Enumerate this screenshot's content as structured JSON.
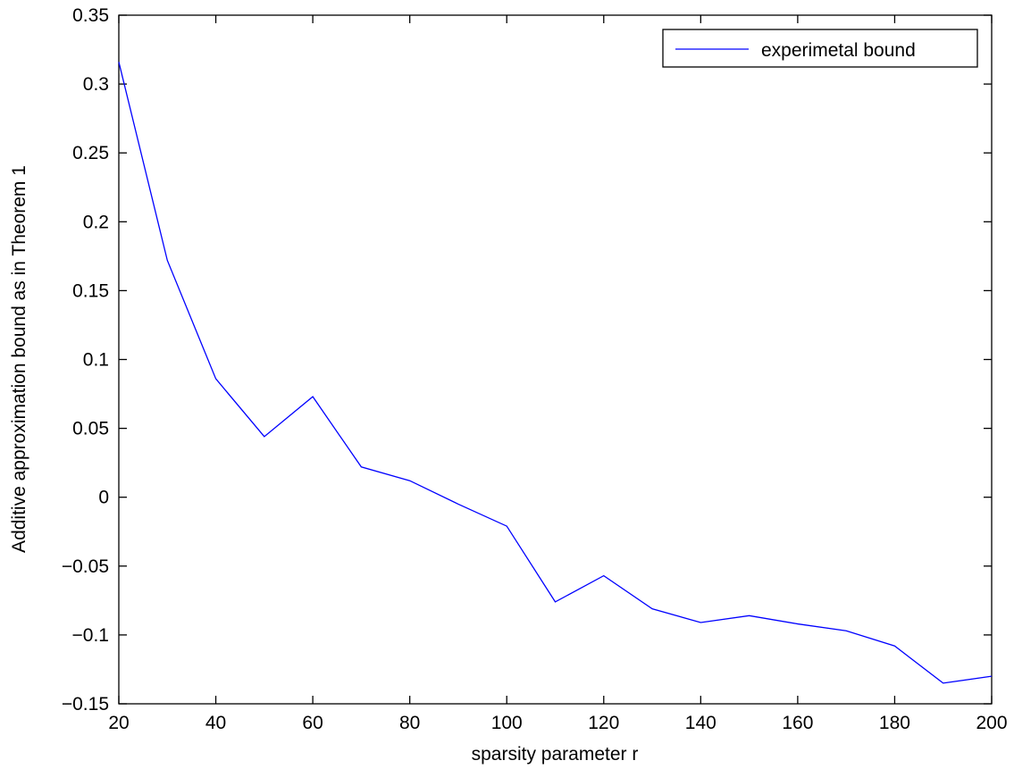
{
  "chart_data": {
    "type": "line",
    "title": "",
    "xlabel": "sparsity parameter r",
    "ylabel": "Additive approximation bound as in Theorem 1",
    "xlim": [
      20,
      200
    ],
    "ylim": [
      -0.15,
      0.35
    ],
    "xticks": [
      20,
      40,
      60,
      80,
      100,
      120,
      140,
      160,
      180,
      200
    ],
    "xtick_labels": [
      "20",
      "40",
      "60",
      "80",
      "100",
      "120",
      "140",
      "160",
      "180",
      "200"
    ],
    "yticks": [
      -0.15,
      -0.1,
      -0.05,
      0,
      0.05,
      0.1,
      0.15,
      0.2,
      0.25,
      0.3,
      0.35
    ],
    "ytick_labels": [
      "−0.15",
      "−0.1",
      "−0.05",
      "0",
      "0.05",
      "0.1",
      "0.15",
      "0.2",
      "0.25",
      "0.3",
      "0.35"
    ],
    "grid": false,
    "legend_position": "top-right",
    "series": [
      {
        "name": "experimetal bound",
        "color": "#0000ff",
        "x": [
          20,
          30,
          40,
          50,
          60,
          70,
          80,
          90,
          100,
          110,
          120,
          130,
          140,
          150,
          160,
          170,
          180,
          190,
          200
        ],
        "y": [
          0.316,
          0.172,
          0.086,
          0.044,
          0.073,
          0.022,
          0.012,
          -0.005,
          -0.021,
          -0.076,
          -0.057,
          -0.081,
          -0.091,
          -0.086,
          -0.092,
          -0.097,
          -0.108,
          -0.135,
          -0.13
        ]
      }
    ]
  }
}
